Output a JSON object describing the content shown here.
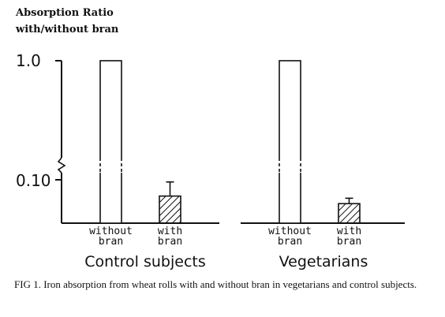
{
  "chart_data": {
    "type": "bar",
    "ylabel": [
      "Absorption Ratio",
      "with/without bran"
    ],
    "yscale": "log",
    "axis_break": true,
    "ylim": [
      0.06,
      1.0
    ],
    "yticks": [
      {
        "value": 1.0,
        "label": "1.0"
      },
      {
        "value": 0.1,
        "label": "0.10"
      }
    ],
    "categories": [
      "without bran",
      "with bran"
    ],
    "panels": [
      {
        "name": "Control subjects",
        "values": [
          1.0,
          0.085
        ],
        "error_upper": [
          null,
          0.098
        ],
        "fill": [
          "open",
          "hatched"
        ]
      },
      {
        "name": "Vegetarians",
        "values": [
          1.0,
          0.078
        ],
        "error_upper": [
          null,
          0.083
        ],
        "fill": [
          "open",
          "hatched"
        ]
      }
    ]
  },
  "caption": "FIG 1. Iron absorption from wheat rolls with and without bran in vegetarians and control subjects."
}
